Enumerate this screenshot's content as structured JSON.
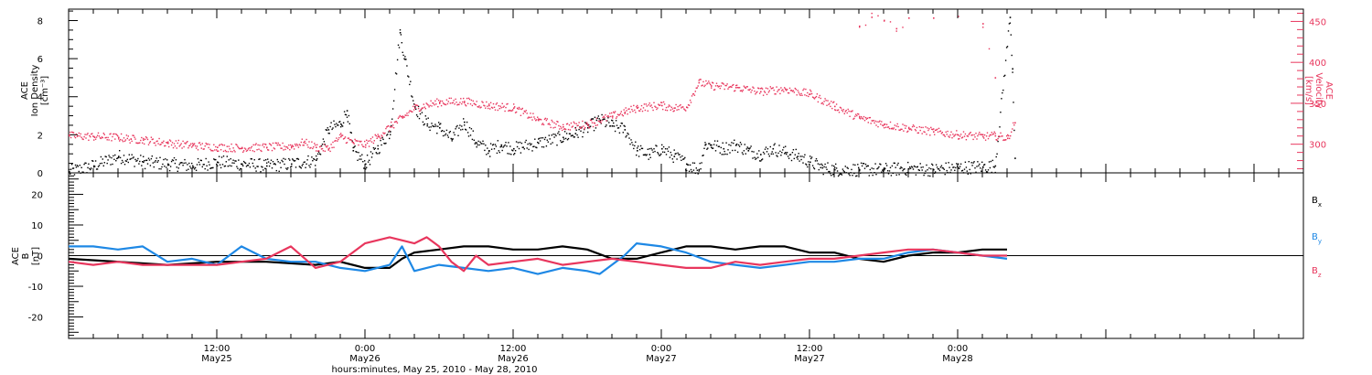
{
  "chart_data": [
    {
      "type": "scatter",
      "panel": "top",
      "ylabel_lines": [
        "ACE",
        "Ion Density"
      ],
      "yunit": "[cm⁻³]",
      "ylim": [
        0,
        8.6
      ],
      "yticks": [
        0,
        2,
        4,
        6,
        8
      ],
      "y2label_lines": [
        "ACE",
        "Velocity"
      ],
      "y2unit": "[km/s]",
      "y2lim": [
        265,
        465
      ],
      "y2ticks": [
        300,
        350,
        400,
        450
      ],
      "series": [
        {
          "axis": "left",
          "color": "#000000",
          "points": [
            [
              0,
              0.1
            ],
            [
              2,
              0.4
            ],
            [
              4,
              0.9
            ],
            [
              6,
              0.6
            ],
            [
              8,
              0.5
            ],
            [
              10,
              0.4
            ],
            [
              12,
              0.6
            ],
            [
              14,
              0.5
            ],
            [
              16,
              0.4
            ],
            [
              18,
              0.5
            ],
            [
              20,
              0.7
            ],
            [
              21,
              2.3
            ],
            [
              22,
              2.6
            ],
            [
              22.5,
              3.3
            ],
            [
              23,
              1.2
            ],
            [
              24,
              0.5
            ],
            [
              25,
              1.3
            ],
            [
              26,
              2.2
            ],
            [
              26.8,
              7.4
            ],
            [
              27.2,
              6.0
            ],
            [
              28,
              3.5
            ],
            [
              29,
              2.6
            ],
            [
              30,
              2.4
            ],
            [
              31,
              1.8
            ],
            [
              32,
              2.7
            ],
            [
              33,
              1.6
            ],
            [
              34,
              1.2
            ],
            [
              35,
              1.5
            ],
            [
              36,
              1.3
            ],
            [
              38,
              1.6
            ],
            [
              40,
              1.9
            ],
            [
              41,
              2.1
            ],
            [
              42,
              2.4
            ],
            [
              43,
              2.8
            ],
            [
              44,
              2.5
            ],
            [
              45,
              2.3
            ],
            [
              46,
              1.2
            ],
            [
              47,
              1.0
            ],
            [
              48,
              1.3
            ],
            [
              49,
              0.9
            ],
            [
              50,
              0.5
            ],
            [
              51,
              0.2
            ],
            [
              51.5,
              1.5
            ],
            [
              52,
              1.5
            ],
            [
              53,
              1.3
            ],
            [
              54,
              1.5
            ],
            [
              55,
              1.2
            ],
            [
              56,
              1.0
            ],
            [
              57,
              1.3
            ],
            [
              58,
              1.1
            ],
            [
              59,
              0.9
            ],
            [
              60,
              0.6
            ],
            [
              61,
              0.3
            ],
            [
              62,
              0.2
            ],
            [
              64,
              0.2
            ],
            [
              66,
              0.2
            ],
            [
              68,
              0.25
            ],
            [
              70,
              0.2
            ],
            [
              72,
              0.3
            ],
            [
              74,
              0.35
            ],
            [
              75,
              0.4
            ],
            [
              76.2,
              8.2
            ],
            [
              76.4,
              5.5
            ],
            [
              76.6,
              0.8
            ]
          ]
        },
        {
          "axis": "right",
          "color": "#e8365d",
          "points": [
            [
              0,
              311
            ],
            [
              2,
              310
            ],
            [
              4,
              309
            ],
            [
              5,
              307
            ],
            [
              6,
              306
            ],
            [
              8,
              302
            ],
            [
              10,
              299
            ],
            [
              12,
              297
            ],
            [
              14,
              296
            ],
            [
              16,
              297
            ],
            [
              18,
              298
            ],
            [
              19,
              303
            ],
            [
              20,
              297
            ],
            [
              21,
              295
            ],
            [
              22,
              310
            ],
            [
              23,
              303
            ],
            [
              24,
              300
            ],
            [
              25,
              310
            ],
            [
              26,
              322
            ],
            [
              27,
              333
            ],
            [
              28,
              345
            ],
            [
              30,
              352
            ],
            [
              32,
              353
            ],
            [
              34,
              348
            ],
            [
              36,
              345
            ],
            [
              38,
              330
            ],
            [
              40,
              322
            ],
            [
              42,
              325
            ],
            [
              44,
              335
            ],
            [
              45,
              340
            ],
            [
              46,
              345
            ],
            [
              48,
              348
            ],
            [
              49,
              345
            ],
            [
              50,
              346
            ],
            [
              51,
              376
            ],
            [
              52,
              372
            ],
            [
              54,
              370
            ],
            [
              56,
              365
            ],
            [
              58,
              368
            ],
            [
              60,
              362
            ],
            [
              62,
              347
            ],
            [
              64,
              333
            ],
            [
              66,
              325
            ],
            [
              68,
              320
            ],
            [
              70,
              316
            ],
            [
              72,
              312
            ],
            [
              74,
              310
            ],
            [
              75,
              311
            ],
            [
              76,
              308
            ],
            [
              76.6,
              327
            ]
          ]
        },
        {
          "axis": "right",
          "color": "#e8365d",
          "points": [
            [
              64,
              445
            ],
            [
              65,
              456
            ],
            [
              66,
              452
            ],
            [
              67,
              442
            ],
            [
              68,
              455
            ],
            [
              70,
              455
            ],
            [
              72,
              457
            ],
            [
              74,
              448
            ],
            [
              75,
              382
            ]
          ]
        }
      ]
    },
    {
      "type": "line",
      "panel": "bottom",
      "ylabel_lines": [
        "ACE",
        "B"
      ],
      "yunit": "[nT]",
      "ylim": [
        -27,
        27
      ],
      "yticks": [
        -20,
        -10,
        0,
        10,
        20
      ],
      "series": [
        {
          "name": "Bx",
          "color": "#000000",
          "points": [
            [
              0,
              -1
            ],
            [
              4,
              -2
            ],
            [
              8,
              -3
            ],
            [
              12,
              -2
            ],
            [
              16,
              -2
            ],
            [
              20,
              -3
            ],
            [
              22,
              -2
            ],
            [
              24,
              -4
            ],
            [
              26,
              -4
            ],
            [
              27,
              -1
            ],
            [
              28,
              1
            ],
            [
              30,
              2
            ],
            [
              32,
              3
            ],
            [
              34,
              3
            ],
            [
              36,
              2
            ],
            [
              38,
              2
            ],
            [
              40,
              3
            ],
            [
              42,
              2
            ],
            [
              44,
              -1
            ],
            [
              46,
              -1
            ],
            [
              48,
              1
            ],
            [
              50,
              3
            ],
            [
              52,
              3
            ],
            [
              54,
              2
            ],
            [
              56,
              3
            ],
            [
              58,
              3
            ],
            [
              60,
              1
            ],
            [
              62,
              1
            ],
            [
              64,
              -1
            ],
            [
              66,
              -2
            ],
            [
              68,
              0
            ],
            [
              70,
              1
            ],
            [
              72,
              1
            ],
            [
              74,
              2
            ],
            [
              76,
              2
            ]
          ]
        },
        {
          "name": "By",
          "color": "#1e88e5",
          "points": [
            [
              0,
              3
            ],
            [
              2,
              3
            ],
            [
              4,
              2
            ],
            [
              6,
              3
            ],
            [
              8,
              -2
            ],
            [
              10,
              -1
            ],
            [
              12,
              -3
            ],
            [
              14,
              3
            ],
            [
              16,
              -1
            ],
            [
              18,
              -2
            ],
            [
              20,
              -2
            ],
            [
              22,
              -4
            ],
            [
              24,
              -5
            ],
            [
              26,
              -3
            ],
            [
              27,
              3
            ],
            [
              28,
              -5
            ],
            [
              30,
              -3
            ],
            [
              32,
              -4
            ],
            [
              34,
              -5
            ],
            [
              36,
              -4
            ],
            [
              38,
              -6
            ],
            [
              40,
              -4
            ],
            [
              42,
              -5
            ],
            [
              43,
              -6
            ],
            [
              45,
              0
            ],
            [
              46,
              4
            ],
            [
              48,
              3
            ],
            [
              50,
              1
            ],
            [
              52,
              -2
            ],
            [
              54,
              -3
            ],
            [
              56,
              -4
            ],
            [
              58,
              -3
            ],
            [
              60,
              -2
            ],
            [
              62,
              -2
            ],
            [
              64,
              -1
            ],
            [
              66,
              -1
            ],
            [
              68,
              1
            ],
            [
              70,
              2
            ],
            [
              72,
              1
            ],
            [
              74,
              0
            ],
            [
              76,
              -1
            ]
          ]
        },
        {
          "name": "Bz",
          "color": "#e8365d",
          "points": [
            [
              0,
              -2
            ],
            [
              2,
              -3
            ],
            [
              4,
              -2
            ],
            [
              6,
              -3
            ],
            [
              8,
              -3
            ],
            [
              10,
              -3
            ],
            [
              12,
              -3
            ],
            [
              14,
              -2
            ],
            [
              16,
              -1
            ],
            [
              18,
              3
            ],
            [
              20,
              -4
            ],
            [
              22,
              -2
            ],
            [
              24,
              4
            ],
            [
              26,
              6
            ],
            [
              28,
              4
            ],
            [
              29,
              6
            ],
            [
              30,
              3
            ],
            [
              31,
              -2
            ],
            [
              32,
              -5
            ],
            [
              33,
              0
            ],
            [
              34,
              -3
            ],
            [
              36,
              -2
            ],
            [
              38,
              -1
            ],
            [
              40,
              -3
            ],
            [
              42,
              -2
            ],
            [
              44,
              -1
            ],
            [
              46,
              -2
            ],
            [
              48,
              -3
            ],
            [
              50,
              -4
            ],
            [
              52,
              -4
            ],
            [
              54,
              -2
            ],
            [
              56,
              -3
            ],
            [
              58,
              -2
            ],
            [
              60,
              -1
            ],
            [
              62,
              -1
            ],
            [
              64,
              0
            ],
            [
              66,
              1
            ],
            [
              68,
              2
            ],
            [
              70,
              2
            ],
            [
              72,
              1
            ],
            [
              74,
              0
            ],
            [
              76,
              0
            ]
          ]
        }
      ]
    }
  ],
  "legend": {
    "bx": {
      "base": "B",
      "sub": "x",
      "color": "#000000"
    },
    "by": {
      "base": "B",
      "sub": "y",
      "color": "#1e88e5"
    },
    "bz": {
      "base": "B",
      "sub": "z",
      "color": "#e8365d"
    }
  },
  "xaxis": {
    "start_label_hours": 0,
    "end_hours": 100,
    "major_ticks": [
      {
        "hour": 12,
        "time": "12:00",
        "date": "May25"
      },
      {
        "hour": 24,
        "time": "0:00",
        "date": "May26"
      },
      {
        "hour": 36,
        "time": "12:00",
        "date": "May26"
      },
      {
        "hour": 48,
        "time": "0:00",
        "date": "May27"
      },
      {
        "hour": 60,
        "time": "12:00",
        "date": "May27"
      },
      {
        "hour": 72,
        "time": "0:00",
        "date": "May28"
      }
    ],
    "label": "hours:minutes, May 25, 2010 - May 28, 2010"
  }
}
